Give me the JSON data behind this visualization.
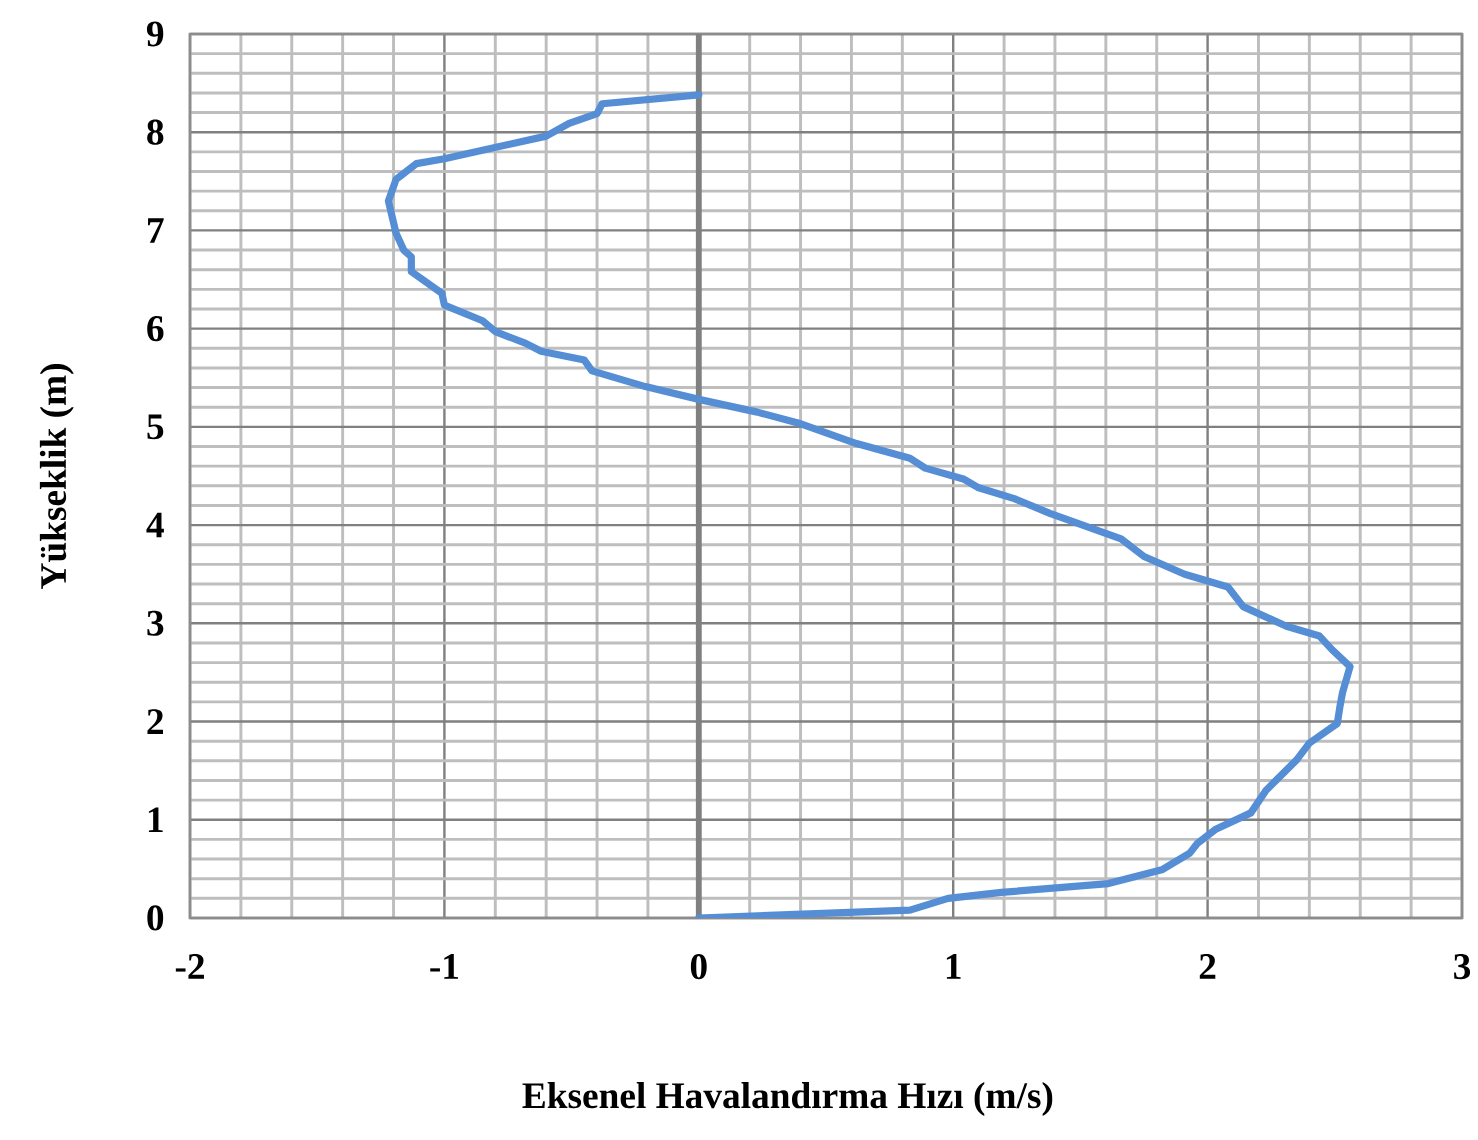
{
  "chart_data": {
    "type": "line",
    "xlabel": "Eksenel Havalandırma Hızı (m/s)",
    "ylabel": "Yükseklik (m)",
    "xlim": [
      -2,
      3
    ],
    "xticks": [
      -2,
      -1,
      0,
      1,
      2,
      3
    ],
    "ylim": [
      0,
      9
    ],
    "yticks": [
      0,
      1,
      2,
      3,
      4,
      5,
      6,
      7,
      8,
      9
    ],
    "grid": true,
    "ref_lines": [
      {
        "axis": "x",
        "value": 0,
        "color": "#808080"
      }
    ],
    "series": [
      {
        "color": "#558ED5",
        "x": [
          0,
          0.83,
          0.98,
          1.19,
          1.61,
          1.82,
          1.93,
          1.96,
          2.03,
          2.17,
          2.23,
          2.35,
          2.4,
          2.51,
          2.52,
          2.53,
          2.56,
          2.49,
          2.44,
          2.31,
          2.14,
          2.08,
          1.91,
          1.75,
          1.66,
          1.38,
          1.24,
          1.1,
          1.04,
          0.89,
          0.83,
          0.62,
          0.39,
          0.23,
          0,
          -0.21,
          -0.42,
          -0.45,
          -0.62,
          -0.68,
          -0.8,
          -0.85,
          -1.0,
          -1.01,
          -1.13,
          -1.13,
          -1.16,
          -1.19,
          -1.22,
          -1.19,
          -1.11,
          -1.0,
          -0.6,
          -0.51,
          -0.4,
          -0.38,
          0
        ],
        "values": [
          0,
          0.08,
          0.2,
          0.26,
          0.35,
          0.49,
          0.66,
          0.76,
          0.9,
          1.07,
          1.3,
          1.61,
          1.78,
          1.98,
          2.15,
          2.29,
          2.56,
          2.73,
          2.87,
          2.97,
          3.17,
          3.37,
          3.5,
          3.68,
          3.86,
          4.12,
          4.27,
          4.38,
          4.47,
          4.58,
          4.68,
          4.83,
          5.04,
          5.15,
          5.28,
          5.41,
          5.57,
          5.68,
          5.77,
          5.85,
          5.97,
          6.08,
          6.24,
          6.36,
          6.58,
          6.73,
          6.8,
          6.97,
          7.3,
          7.52,
          7.68,
          7.73,
          7.96,
          8.09,
          8.19,
          8.29,
          8.38
        ]
      }
    ]
  }
}
